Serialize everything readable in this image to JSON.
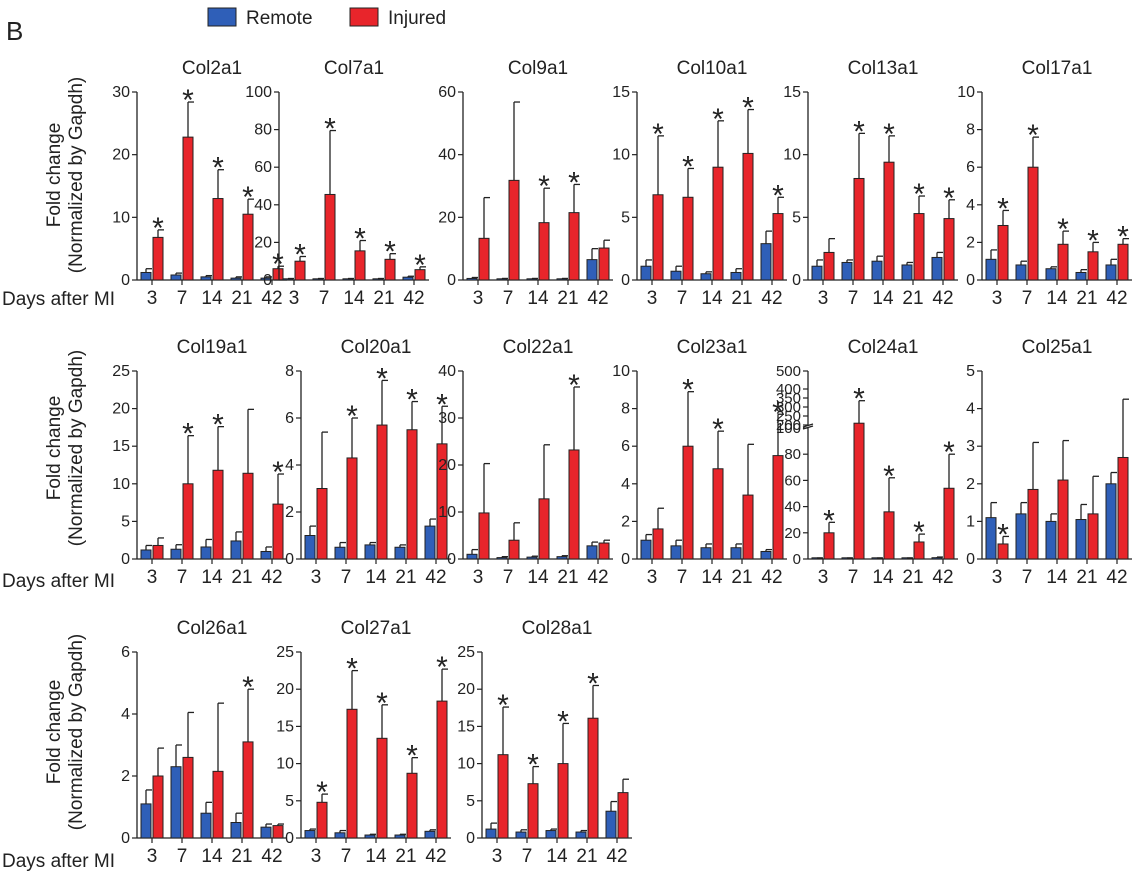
{
  "panel_label": "B",
  "legend": {
    "items": [
      {
        "label": "Remote",
        "color": "#2f5fb8"
      },
      {
        "label": "Injured",
        "color": "#e8252b"
      }
    ]
  },
  "y_axis_title_line1": "Fold change",
  "y_axis_title_line2": "(Normalized by Gapdh)",
  "x_axis_title": "Days after MI",
  "significance_marker": "*",
  "chart_data": [
    {
      "type": "bar",
      "title": "Col2a1",
      "categories": [
        "3",
        "7",
        "14",
        "21",
        "42"
      ],
      "ylim": [
        0,
        30
      ],
      "yticks": [
        0,
        10,
        20,
        30
      ],
      "series": [
        {
          "name": "Remote",
          "values": [
            1.2,
            0.8,
            0.5,
            0.3,
            0.3
          ],
          "errors": [
            0.6,
            0.3,
            0.2,
            0.2,
            0.2
          ]
        },
        {
          "name": "Injured",
          "values": [
            6.8,
            22.8,
            13.0,
            10.5,
            1.8
          ],
          "errors": [
            1.2,
            5.6,
            4.6,
            2.4,
            0.4
          ]
        }
      ],
      "significant": [
        true,
        true,
        true,
        true,
        true
      ]
    },
    {
      "type": "bar",
      "title": "Col7a1",
      "categories": [
        "3",
        "7",
        "14",
        "21",
        "42"
      ],
      "ylim": [
        0,
        100
      ],
      "yticks": [
        0,
        20,
        40,
        60,
        80,
        100
      ],
      "series": [
        {
          "name": "Remote",
          "values": [
            0.5,
            0.5,
            0.5,
            0.5,
            1.5
          ],
          "errors": [
            0.3,
            0.3,
            0.3,
            0.3,
            0.5
          ]
        },
        {
          "name": "Injured",
          "values": [
            10.0,
            45.5,
            15.5,
            11.0,
            5.5
          ],
          "errors": [
            2.5,
            34.0,
            5.5,
            3.0,
            1.5
          ]
        }
      ],
      "significant": [
        true,
        true,
        true,
        true,
        true
      ]
    },
    {
      "type": "bar",
      "title": "Col9a1",
      "categories": [
        "3",
        "7",
        "14",
        "21",
        "42"
      ],
      "ylim": [
        0,
        60
      ],
      "yticks": [
        0,
        20,
        40,
        60
      ],
      "series": [
        {
          "name": "Remote",
          "values": [
            0.5,
            0.3,
            0.3,
            0.3,
            6.5
          ],
          "errors": [
            0.3,
            0.2,
            0.2,
            0.2,
            3.5
          ]
        },
        {
          "name": "Injured",
          "values": [
            13.3,
            31.8,
            18.3,
            21.5,
            10.2
          ],
          "errors": [
            13.0,
            25.0,
            11.0,
            9.0,
            2.5
          ]
        }
      ],
      "significant": [
        false,
        false,
        true,
        true,
        false
      ]
    },
    {
      "type": "bar",
      "title": "Col10a1",
      "categories": [
        "3",
        "7",
        "14",
        "21",
        "42"
      ],
      "ylim": [
        0,
        15
      ],
      "yticks": [
        0,
        5,
        10,
        15
      ],
      "series": [
        {
          "name": "Remote",
          "values": [
            1.1,
            0.7,
            0.5,
            0.6,
            2.9
          ],
          "errors": [
            0.5,
            0.4,
            0.15,
            0.3,
            1.0
          ]
        },
        {
          "name": "Injured",
          "values": [
            6.8,
            6.6,
            9.0,
            10.1,
            5.3
          ],
          "errors": [
            4.7,
            2.3,
            3.7,
            3.5,
            1.3
          ]
        }
      ],
      "significant": [
        true,
        true,
        true,
        true,
        true
      ]
    },
    {
      "type": "bar",
      "title": "Col13a1",
      "categories": [
        "3",
        "7",
        "14",
        "21",
        "42"
      ],
      "ylim": [
        0,
        15
      ],
      "yticks": [
        0,
        5,
        10,
        15
      ],
      "series": [
        {
          "name": "Remote",
          "values": [
            1.1,
            1.4,
            1.5,
            1.2,
            1.8
          ],
          "errors": [
            0.5,
            0.2,
            0.4,
            0.2,
            0.4
          ]
        },
        {
          "name": "Injured",
          "values": [
            2.2,
            8.1,
            9.4,
            5.3,
            4.9
          ],
          "errors": [
            1.1,
            3.6,
            2.1,
            1.4,
            1.5
          ]
        }
      ],
      "significant": [
        false,
        true,
        true,
        true,
        true
      ]
    },
    {
      "type": "bar",
      "title": "Col17a1",
      "categories": [
        "3",
        "7",
        "14",
        "21",
        "42"
      ],
      "ylim": [
        0,
        10
      ],
      "yticks": [
        0,
        2,
        4,
        6,
        8,
        10
      ],
      "series": [
        {
          "name": "Remote",
          "values": [
            1.1,
            0.8,
            0.6,
            0.4,
            0.8
          ],
          "errors": [
            0.5,
            0.2,
            0.1,
            0.15,
            0.3
          ]
        },
        {
          "name": "Injured",
          "values": [
            2.9,
            6.0,
            1.9,
            1.5,
            1.9
          ],
          "errors": [
            0.8,
            1.6,
            0.7,
            0.5,
            0.3
          ]
        }
      ],
      "significant": [
        true,
        true,
        true,
        true,
        true
      ]
    },
    {
      "type": "bar",
      "title": "Col19a1",
      "categories": [
        "3",
        "7",
        "14",
        "21",
        "42"
      ],
      "ylim": [
        0,
        25
      ],
      "yticks": [
        0,
        5,
        10,
        15,
        20,
        25
      ],
      "series": [
        {
          "name": "Remote",
          "values": [
            1.2,
            1.3,
            1.6,
            2.4,
            1.0
          ],
          "errors": [
            0.6,
            0.6,
            1.0,
            1.2,
            0.6
          ]
        },
        {
          "name": "Injured",
          "values": [
            1.8,
            10.0,
            11.8,
            11.4,
            7.3
          ],
          "errors": [
            1.0,
            6.4,
            5.8,
            8.5,
            4.0
          ]
        }
      ],
      "significant": [
        false,
        true,
        true,
        false,
        true
      ]
    },
    {
      "type": "bar",
      "title": "Col20a1",
      "categories": [
        "3",
        "7",
        "14",
        "21",
        "42"
      ],
      "ylim": [
        0,
        8
      ],
      "yticks": [
        0,
        2,
        4,
        6,
        8
      ],
      "series": [
        {
          "name": "Remote",
          "values": [
            1.0,
            0.5,
            0.6,
            0.5,
            1.4
          ],
          "errors": [
            0.4,
            0.2,
            0.1,
            0.1,
            0.3
          ]
        },
        {
          "name": "Injured",
          "values": [
            3.0,
            4.3,
            5.7,
            5.5,
            4.9
          ],
          "errors": [
            2.4,
            1.7,
            1.9,
            1.2,
            1.6
          ]
        }
      ],
      "significant": [
        false,
        true,
        true,
        true,
        true
      ]
    },
    {
      "type": "bar",
      "title": "Col22a1",
      "categories": [
        "3",
        "7",
        "14",
        "21",
        "42"
      ],
      "ylim": [
        0,
        40
      ],
      "yticks": [
        0,
        10,
        20,
        30,
        40
      ],
      "series": [
        {
          "name": "Remote",
          "values": [
            1.0,
            0.3,
            0.4,
            0.5,
            2.8
          ],
          "errors": [
            1.0,
            0.2,
            0.2,
            0.2,
            0.8
          ]
        },
        {
          "name": "Injured",
          "values": [
            9.8,
            4.0,
            12.8,
            23.2,
            3.4
          ],
          "errors": [
            10.5,
            3.7,
            11.5,
            13.4,
            0.6
          ]
        }
      ],
      "significant": [
        false,
        false,
        false,
        true,
        false
      ]
    },
    {
      "type": "bar",
      "title": "Col23a1",
      "categories": [
        "3",
        "7",
        "14",
        "21",
        "42"
      ],
      "ylim": [
        0,
        10
      ],
      "yticks": [
        0,
        2,
        4,
        6,
        8,
        10
      ],
      "series": [
        {
          "name": "Remote",
          "values": [
            1.0,
            0.7,
            0.6,
            0.6,
            0.4
          ],
          "errors": [
            0.3,
            0.3,
            0.2,
            0.2,
            0.1
          ]
        },
        {
          "name": "Injured",
          "values": [
            1.6,
            6.0,
            4.8,
            3.4,
            5.5
          ],
          "errors": [
            1.1,
            2.9,
            2.0,
            2.7,
            2.2
          ]
        }
      ],
      "significant": [
        false,
        true,
        true,
        false,
        true
      ]
    },
    {
      "type": "bar",
      "title": "Col24a1",
      "categories": [
        "3",
        "7",
        "14",
        "21",
        "42"
      ],
      "ylim": [
        0,
        500
      ],
      "axis_break": true,
      "yticks": [
        0,
        20,
        40,
        60,
        80,
        100,
        200,
        250,
        300,
        350,
        400,
        500
      ],
      "series": [
        {
          "name": "Remote",
          "values": [
            0.5,
            0.5,
            0.5,
            0.5,
            1.0
          ],
          "errors": [
            0.3,
            0.3,
            0.3,
            0.3,
            0.5
          ]
        },
        {
          "name": "Injured",
          "values": [
            20,
            210,
            36,
            13,
            54
          ],
          "errors": [
            8,
            125,
            26,
            6,
            26
          ]
        }
      ],
      "significant": [
        true,
        true,
        true,
        true,
        true
      ]
    },
    {
      "type": "bar",
      "title": "Col25a1",
      "categories": [
        "3",
        "7",
        "14",
        "21",
        "42"
      ],
      "ylim": [
        0,
        5
      ],
      "yticks": [
        0,
        1,
        2,
        3,
        4,
        5
      ],
      "series": [
        {
          "name": "Remote",
          "values": [
            1.1,
            1.2,
            1.0,
            1.05,
            2.0
          ],
          "errors": [
            0.4,
            0.3,
            0.2,
            0.4,
            0.3
          ]
        },
        {
          "name": "Injured",
          "values": [
            0.4,
            1.85,
            2.1,
            1.2,
            2.7
          ],
          "errors": [
            0.2,
            1.25,
            1.05,
            1.0,
            1.55
          ]
        }
      ],
      "significant": [
        true,
        false,
        false,
        false,
        false
      ]
    },
    {
      "type": "bar",
      "title": "Col26a1",
      "categories": [
        "3",
        "7",
        "14",
        "21",
        "42"
      ],
      "ylim": [
        0,
        6
      ],
      "yticks": [
        0,
        2,
        4,
        6
      ],
      "series": [
        {
          "name": "Remote",
          "values": [
            1.1,
            2.3,
            0.8,
            0.5,
            0.35
          ],
          "errors": [
            0.45,
            0.7,
            0.35,
            0.3,
            0.1
          ]
        },
        {
          "name": "Injured",
          "values": [
            2.0,
            2.6,
            2.15,
            3.1,
            0.4
          ],
          "errors": [
            0.9,
            1.45,
            2.2,
            1.7,
            0.05
          ]
        }
      ],
      "significant": [
        false,
        false,
        false,
        true,
        false
      ]
    },
    {
      "type": "bar",
      "title": "Col27a1",
      "categories": [
        "3",
        "7",
        "14",
        "21",
        "42"
      ],
      "ylim": [
        0,
        25
      ],
      "yticks": [
        0,
        5,
        10,
        15,
        20,
        25
      ],
      "series": [
        {
          "name": "Remote",
          "values": [
            1.0,
            0.7,
            0.4,
            0.4,
            0.9
          ],
          "errors": [
            0.2,
            0.3,
            0.1,
            0.1,
            0.2
          ]
        },
        {
          "name": "Injured",
          "values": [
            4.8,
            17.3,
            13.4,
            8.7,
            18.4
          ],
          "errors": [
            1.1,
            5.2,
            4.5,
            2.1,
            4.3
          ]
        }
      ],
      "significant": [
        true,
        true,
        true,
        true,
        true
      ]
    },
    {
      "type": "bar",
      "title": "Col28a1",
      "categories": [
        "3",
        "7",
        "14",
        "21",
        "42"
      ],
      "ylim": [
        0,
        25
      ],
      "yticks": [
        0,
        5,
        10,
        15,
        20,
        25
      ],
      "series": [
        {
          "name": "Remote",
          "values": [
            1.2,
            0.8,
            1.0,
            0.8,
            3.6
          ],
          "errors": [
            0.8,
            0.3,
            0.2,
            0.2,
            1.3
          ]
        },
        {
          "name": "Injured",
          "values": [
            11.2,
            7.3,
            10.0,
            16.1,
            6.1
          ],
          "errors": [
            6.4,
            2.3,
            5.4,
            4.4,
            1.8
          ]
        }
      ],
      "significant": [
        true,
        true,
        true,
        true,
        false
      ]
    }
  ]
}
